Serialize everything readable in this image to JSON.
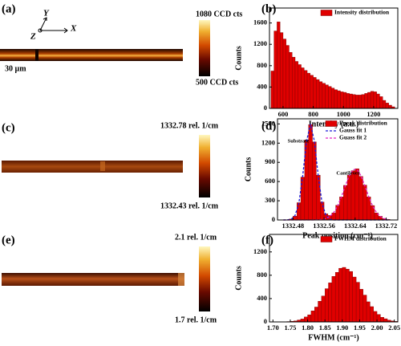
{
  "figure": {
    "panel_labels": [
      "(a)",
      "(b)",
      "(c)",
      "(d)",
      "(e)",
      "(f)"
    ],
    "axes_glyph": [
      "Y",
      "X",
      "Z"
    ],
    "scale_bar": "30 µm",
    "colorbars": [
      {
        "max": "1080 CCD cts",
        "min": "500 CCD cts"
      },
      {
        "max": "1332.78 rel. 1/cm",
        "min": "1332.43 rel. 1/cm"
      },
      {
        "max": "2.1 rel. 1/cm",
        "min": "1.7 rel. 1/cm"
      }
    ]
  },
  "chart_data": [
    {
      "type": "histogram",
      "name": "Intensity distribution",
      "color": "#e00000",
      "edge_color": "#7a0000",
      "x_label": "Intensity (a.u.)",
      "y_label": "Counts",
      "bins": [
        520,
        540,
        560,
        580,
        600,
        620,
        640,
        660,
        680,
        700,
        720,
        740,
        760,
        780,
        800,
        820,
        840,
        860,
        880,
        900,
        920,
        940,
        960,
        980,
        1000,
        1020,
        1040,
        1060,
        1080,
        1100,
        1120,
        1140,
        1160,
        1180,
        1200,
        1220,
        1240,
        1260,
        1280,
        1300,
        1320,
        1340
      ],
      "values": [
        700,
        1450,
        1620,
        1420,
        1300,
        1180,
        1050,
        960,
        880,
        820,
        760,
        710,
        660,
        620,
        580,
        540,
        500,
        470,
        440,
        410,
        380,
        350,
        330,
        310,
        300,
        280,
        270,
        260,
        250,
        250,
        260,
        280,
        300,
        320,
        310,
        270,
        220,
        150,
        100,
        60,
        30
      ],
      "xlim": [
        510,
        1360
      ],
      "ylim": [
        0,
        1880
      ],
      "xticks": [
        600,
        800,
        1000,
        1200
      ],
      "yticks": [
        0,
        400,
        800,
        1200,
        1600
      ]
    },
    {
      "type": "histogram",
      "name": "Ppeak distribution",
      "color": "#e00000",
      "edge_color": "#7a0000",
      "x_label": "Peak position (cm⁻¹)",
      "y_label": "Counts",
      "annotations": [
        "Substrate",
        "Cantilever"
      ],
      "bins": [
        1332.45,
        1332.46,
        1332.47,
        1332.48,
        1332.49,
        1332.5,
        1332.51,
        1332.52,
        1332.53,
        1332.54,
        1332.55,
        1332.56,
        1332.57,
        1332.58,
        1332.59,
        1332.6,
        1332.61,
        1332.62,
        1332.63,
        1332.64,
        1332.65,
        1332.66,
        1332.67,
        1332.68,
        1332.69,
        1332.7,
        1332.71,
        1332.72,
        1332.73
      ],
      "values": [
        0,
        2,
        14,
        60,
        270,
        670,
        1250,
        1490,
        1220,
        700,
        280,
        95,
        70,
        110,
        230,
        360,
        540,
        700,
        770,
        800,
        680,
        545,
        360,
        225,
        110,
        58,
        20,
        8
      ],
      "lines": [
        {
          "name": "Gauss fit 1",
          "color": "#1a1ad8",
          "x": [
            1332.455,
            1332.465,
            1332.475,
            1332.485,
            1332.495,
            1332.505,
            1332.515,
            1332.525,
            1332.535,
            1332.545,
            1332.555,
            1332.565,
            1332.575,
            1332.585,
            1332.595,
            1332.605,
            1332.615,
            1332.625,
            1332.635,
            1332.645,
            1332.655,
            1332.665,
            1332.675,
            1332.685,
            1332.695,
            1332.705,
            1332.715,
            1332.725
          ],
          "values": [
            0,
            1,
            11,
            66,
            258,
            688,
            1234,
            1500,
            1234,
            688,
            258,
            66,
            11,
            1,
            0,
            0,
            0,
            0,
            0,
            0,
            0,
            0,
            0,
            0,
            0,
            0,
            0,
            0
          ]
        },
        {
          "name": "Guass fit 2",
          "color": "#e020c0",
          "x": [
            1332.455,
            1332.465,
            1332.475,
            1332.485,
            1332.495,
            1332.505,
            1332.515,
            1332.525,
            1332.535,
            1332.545,
            1332.555,
            1332.565,
            1332.575,
            1332.585,
            1332.595,
            1332.605,
            1332.615,
            1332.625,
            1332.635,
            1332.645,
            1332.655,
            1332.665,
            1332.675,
            1332.685,
            1332.695,
            1332.705,
            1332.715,
            1332.725
          ],
          "values": [
            0,
            0,
            0,
            0,
            0,
            0,
            0,
            0,
            1,
            3,
            8,
            22,
            54,
            116,
            220,
            367,
            536,
            693,
            787,
            787,
            693,
            536,
            367,
            220,
            116,
            54,
            22,
            8
          ]
        }
      ],
      "xlim": [
        1332.44,
        1332.75
      ],
      "ylim": [
        0,
        1580
      ],
      "xticks": [
        1332.48,
        1332.56,
        1332.64,
        1332.72
      ],
      "yticks": [
        0,
        300,
        600,
        900,
        1200,
        1500
      ]
    },
    {
      "type": "histogram",
      "name": "FWHM distribution",
      "color": "#e00000",
      "edge_color": "#7a0000",
      "x_label": "FWHM (cm⁻¹)",
      "y_label": "Counts",
      "bins": [
        1.72,
        1.73,
        1.74,
        1.75,
        1.76,
        1.77,
        1.78,
        1.79,
        1.8,
        1.81,
        1.82,
        1.83,
        1.84,
        1.85,
        1.86,
        1.87,
        1.88,
        1.89,
        1.9,
        1.91,
        1.92,
        1.93,
        1.94,
        1.95,
        1.96,
        1.97,
        1.98,
        1.99,
        2.0,
        2.01,
        2.02,
        2.03,
        2.04,
        2.05,
        2.06
      ],
      "values": [
        1,
        3,
        6,
        11,
        17,
        33,
        50,
        85,
        122,
        190,
        255,
        355,
        445,
        570,
        670,
        780,
        850,
        920,
        935,
        905,
        865,
        770,
        680,
        560,
        460,
        345,
        262,
        180,
        128,
        80,
        54,
        30,
        17,
        9
      ],
      "xlim": [
        1.69,
        2.06
      ],
      "ylim": [
        0,
        1500
      ],
      "xticks": [
        {
          "value": 1.7,
          "label": "1.70"
        },
        1.75,
        {
          "value": 1.8,
          "label": "1.80"
        },
        1.85,
        {
          "value": 1.9,
          "label": "1.90"
        },
        1.95,
        {
          "value": 2.0,
          "label": "2.00"
        },
        2.05
      ],
      "yticks": [
        0,
        400,
        800,
        1200
      ]
    }
  ]
}
